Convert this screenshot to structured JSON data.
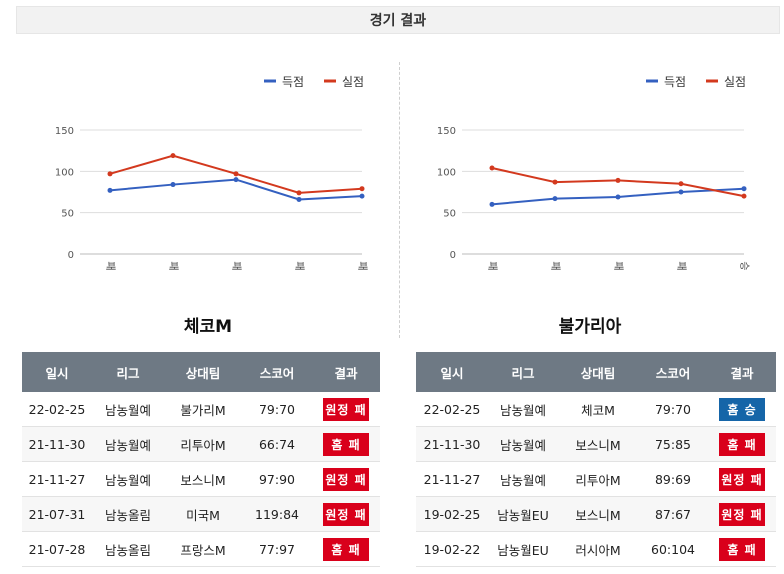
{
  "header": {
    "title": "경기 결과"
  },
  "colors": {
    "scored": "#3460c0",
    "conceded": "#d3391e",
    "loss": "#d9001b",
    "win": "#1565a8",
    "grid": "#dddddd"
  },
  "legend": {
    "scored": "득점",
    "conceded": "실점"
  },
  "chart_data": [
    {
      "type": "line",
      "categories": [
        "패",
        "패",
        "패",
        "패",
        "패"
      ],
      "series": [
        {
          "name": "득점",
          "values": [
            77,
            84,
            90,
            66,
            70
          ]
        },
        {
          "name": "실점",
          "values": [
            97,
            119,
            97,
            74,
            79
          ]
        }
      ],
      "ylim": [
        0,
        150
      ],
      "yticks": [
        0,
        50,
        100,
        150
      ],
      "legend_position": "top-right",
      "grid": true
    },
    {
      "type": "line",
      "categories": [
        "패",
        "패",
        "패",
        "패",
        "승"
      ],
      "series": [
        {
          "name": "득점",
          "values": [
            60,
            67,
            69,
            75,
            79
          ]
        },
        {
          "name": "실점",
          "values": [
            104,
            87,
            89,
            85,
            70
          ]
        }
      ],
      "ylim": [
        0,
        150
      ],
      "yticks": [
        0,
        50,
        100,
        150
      ],
      "legend_position": "top-right",
      "grid": true
    }
  ],
  "teams": [
    {
      "name": "체코M",
      "columns": [
        "일시",
        "리그",
        "상대팀",
        "스코어",
        "결과"
      ],
      "rows": [
        {
          "date": "22-02-25",
          "league": "남농월예",
          "opponent": "불가리M",
          "score": "79:70",
          "result": "원정 패",
          "kind": "loss"
        },
        {
          "date": "21-11-30",
          "league": "남농월예",
          "opponent": "리투아M",
          "score": "66:74",
          "result": "홈 패",
          "kind": "loss"
        },
        {
          "date": "21-11-27",
          "league": "남농월예",
          "opponent": "보스니M",
          "score": "97:90",
          "result": "원정 패",
          "kind": "loss"
        },
        {
          "date": "21-07-31",
          "league": "남농올림",
          "opponent": "미국M",
          "score": "119:84",
          "result": "원정 패",
          "kind": "loss"
        },
        {
          "date": "21-07-28",
          "league": "남농올림",
          "opponent": "프랑스M",
          "score": "77:97",
          "result": "홈 패",
          "kind": "loss"
        }
      ]
    },
    {
      "name": "불가리아",
      "columns": [
        "일시",
        "리그",
        "상대팀",
        "스코어",
        "결과"
      ],
      "rows": [
        {
          "date": "22-02-25",
          "league": "남농월예",
          "opponent": "체코M",
          "score": "79:70",
          "result": "홈 승",
          "kind": "win"
        },
        {
          "date": "21-11-30",
          "league": "남농월예",
          "opponent": "보스니M",
          "score": "75:85",
          "result": "홈 패",
          "kind": "loss"
        },
        {
          "date": "21-11-27",
          "league": "남농월예",
          "opponent": "리투아M",
          "score": "89:69",
          "result": "원정 패",
          "kind": "loss"
        },
        {
          "date": "19-02-25",
          "league": "남농월EU",
          "opponent": "보스니M",
          "score": "87:67",
          "result": "원정 패",
          "kind": "loss"
        },
        {
          "date": "19-02-22",
          "league": "남농월EU",
          "opponent": "러시아M",
          "score": "60:104",
          "result": "홈 패",
          "kind": "loss"
        }
      ]
    }
  ]
}
